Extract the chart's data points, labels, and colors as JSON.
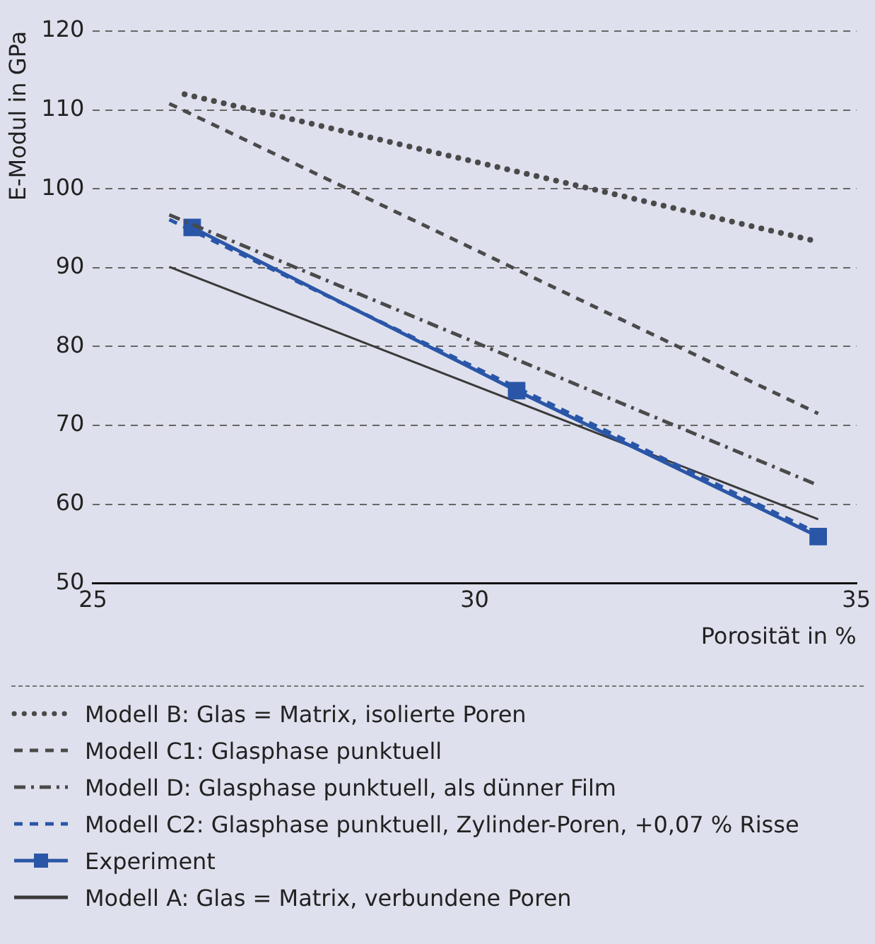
{
  "chart_data": {
    "type": "line",
    "xlabel": "Porosität in %",
    "ylabel": "E-Modul in GPa",
    "xlim": [
      25,
      35
    ],
    "xticks": [
      25,
      30,
      35
    ],
    "ylim": [
      50,
      120
    ],
    "yticks": [
      50,
      60,
      70,
      80,
      90,
      100,
      110,
      120
    ],
    "grid": "y",
    "legend": "bottom",
    "marker": "none",
    "series": [
      {
        "name": "Modell B: Glas = Matrix, isolierte Poren",
        "color": "#4a4a4a",
        "line_style": "dotted",
        "x": [
          26.2,
          34.5
        ],
        "values": [
          112.0,
          93.3
        ]
      },
      {
        "name": "Modell C1: Glasphase punktuell",
        "color": "#4a4a4a",
        "line_style": "dashed",
        "x": [
          26,
          34.5
        ],
        "values": [
          110.8,
          71.5
        ]
      },
      {
        "name": "Modell D: Glasphase punktuell, als dünner Film",
        "color": "#4a4a4a",
        "line_style": "dashdot",
        "x": [
          26,
          34.5
        ],
        "values": [
          96.7,
          62.4
        ]
      },
      {
        "name": "Modell C2: Glasphase punktuell, Zylinder-Poren, +0,07 % Risse",
        "color": "#2a56a8",
        "line_style": "dashed",
        "x": [
          26,
          30.55,
          34.5
        ],
        "values": [
          96.1,
          74.8,
          56.3
        ]
      },
      {
        "name": "Experiment",
        "color": "#2a56a8",
        "line_style": "solid",
        "marker": "square",
        "x": [
          26.3,
          30.55,
          34.5
        ],
        "values": [
          95.1,
          74.4,
          55.9
        ]
      },
      {
        "name": "Modell A: Glas = Matrix, verbundene Poren",
        "color": "#3a3a3a",
        "line_style": "solid",
        "x": [
          26,
          34.5
        ],
        "values": [
          90.1,
          58.1
        ]
      }
    ]
  }
}
